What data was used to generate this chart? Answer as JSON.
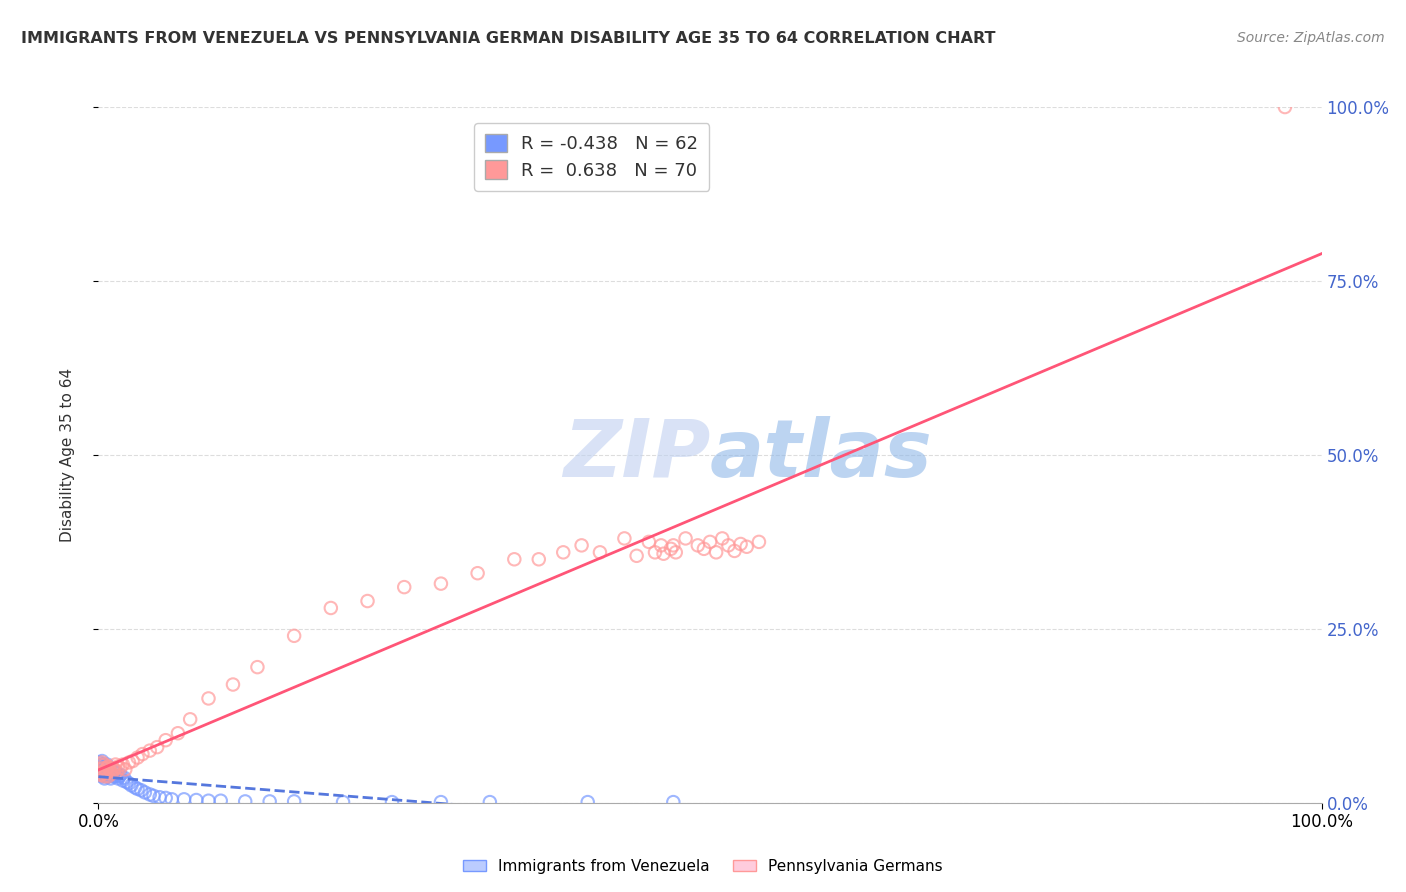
{
  "title": "IMMIGRANTS FROM VENEZUELA VS PENNSYLVANIA GERMAN DISABILITY AGE 35 TO 64 CORRELATION CHART",
  "source": "Source: ZipAtlas.com",
  "ylabel": "Disability Age 35 to 64",
  "blue_color": "#7799FF",
  "pink_color": "#FF9999",
  "blue_line_color": "#5577DD",
  "pink_line_color": "#FF5577",
  "blue_R": -0.438,
  "blue_N": 62,
  "pink_R": 0.638,
  "pink_N": 70,
  "watermark_text": "ZIPatlas",
  "watermark_color": "#C8DCFF",
  "blue_scatter_x": [
    0.001,
    0.001,
    0.002,
    0.002,
    0.002,
    0.003,
    0.003,
    0.003,
    0.003,
    0.004,
    0.004,
    0.004,
    0.005,
    0.005,
    0.005,
    0.006,
    0.006,
    0.006,
    0.007,
    0.007,
    0.007,
    0.008,
    0.008,
    0.009,
    0.009,
    0.01,
    0.01,
    0.011,
    0.012,
    0.013,
    0.014,
    0.015,
    0.016,
    0.017,
    0.018,
    0.02,
    0.021,
    0.023,
    0.025,
    0.027,
    0.03,
    0.032,
    0.035,
    0.038,
    0.042,
    0.045,
    0.05,
    0.055,
    0.06,
    0.07,
    0.08,
    0.09,
    0.1,
    0.12,
    0.14,
    0.16,
    0.2,
    0.24,
    0.28,
    0.32,
    0.4,
    0.47
  ],
  "blue_scatter_y": [
    0.05,
    0.058,
    0.042,
    0.048,
    0.055,
    0.038,
    0.045,
    0.052,
    0.06,
    0.04,
    0.048,
    0.055,
    0.035,
    0.042,
    0.05,
    0.038,
    0.045,
    0.052,
    0.04,
    0.048,
    0.055,
    0.038,
    0.045,
    0.042,
    0.05,
    0.035,
    0.042,
    0.04,
    0.038,
    0.045,
    0.038,
    0.042,
    0.035,
    0.038,
    0.04,
    0.032,
    0.036,
    0.03,
    0.028,
    0.025,
    0.022,
    0.02,
    0.018,
    0.015,
    0.012,
    0.01,
    0.008,
    0.007,
    0.005,
    0.005,
    0.004,
    0.003,
    0.003,
    0.002,
    0.002,
    0.002,
    0.001,
    0.001,
    0.001,
    0.001,
    0.001,
    0.001
  ],
  "pink_scatter_x": [
    0.001,
    0.002,
    0.002,
    0.003,
    0.003,
    0.004,
    0.004,
    0.005,
    0.005,
    0.006,
    0.006,
    0.007,
    0.007,
    0.008,
    0.008,
    0.009,
    0.01,
    0.011,
    0.012,
    0.013,
    0.014,
    0.015,
    0.016,
    0.018,
    0.02,
    0.022,
    0.025,
    0.028,
    0.032,
    0.036,
    0.042,
    0.048,
    0.055,
    0.065,
    0.075,
    0.09,
    0.11,
    0.13,
    0.16,
    0.19,
    0.22,
    0.25,
    0.28,
    0.31,
    0.34,
    0.36,
    0.38,
    0.395,
    0.41,
    0.43,
    0.44,
    0.45,
    0.455,
    0.46,
    0.462,
    0.468,
    0.47,
    0.472,
    0.48,
    0.49,
    0.495,
    0.5,
    0.505,
    0.51,
    0.515,
    0.52,
    0.525,
    0.53,
    0.54,
    0.97
  ],
  "pink_scatter_y": [
    0.048,
    0.04,
    0.055,
    0.042,
    0.058,
    0.045,
    0.05,
    0.038,
    0.055,
    0.042,
    0.048,
    0.05,
    0.045,
    0.052,
    0.038,
    0.048,
    0.045,
    0.042,
    0.05,
    0.048,
    0.055,
    0.045,
    0.052,
    0.05,
    0.055,
    0.048,
    0.058,
    0.06,
    0.065,
    0.07,
    0.075,
    0.08,
    0.09,
    0.1,
    0.12,
    0.15,
    0.17,
    0.195,
    0.24,
    0.28,
    0.29,
    0.31,
    0.315,
    0.33,
    0.35,
    0.35,
    0.36,
    0.37,
    0.36,
    0.38,
    0.355,
    0.375,
    0.36,
    0.37,
    0.358,
    0.365,
    0.37,
    0.36,
    0.38,
    0.37,
    0.365,
    0.375,
    0.36,
    0.38,
    0.37,
    0.362,
    0.372,
    0.368,
    0.375,
    1.0
  ],
  "xlim": [
    0.0,
    1.0
  ],
  "ylim": [
    0.0,
    1.0
  ],
  "figsize": [
    14.06,
    8.92
  ],
  "dpi": 100
}
